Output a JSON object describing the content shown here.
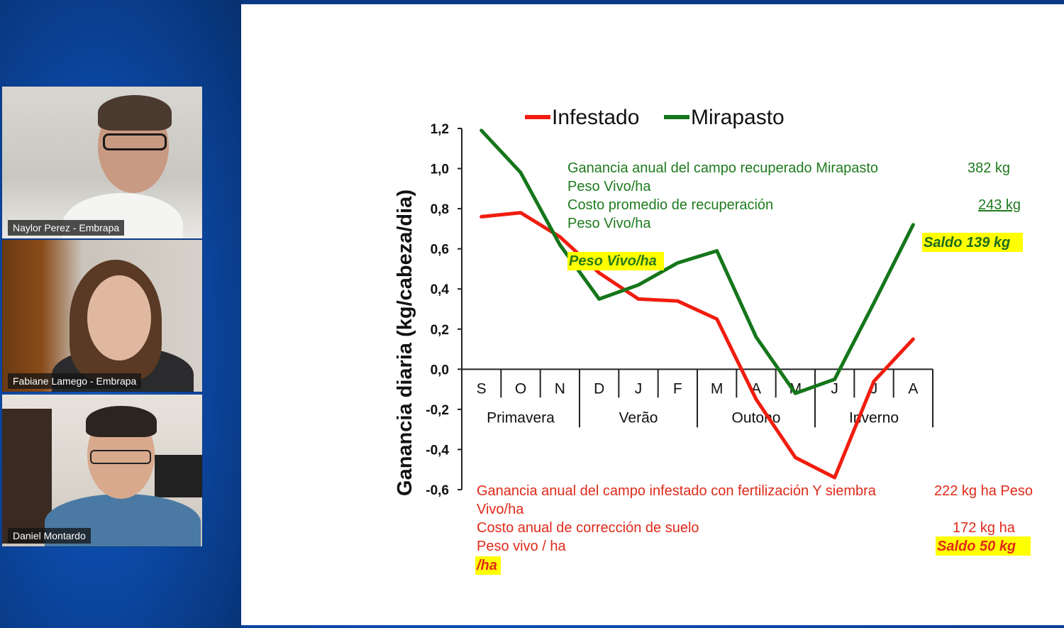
{
  "participants": [
    {
      "name": "Naylor Perez - Embrapa"
    },
    {
      "name": "Fabiane Lamego - Embrapa"
    },
    {
      "name": "Daniel Montardo"
    }
  ],
  "colors": {
    "infestado": "#f01d0f",
    "mirapasto": "#15761a",
    "highlight": "#ffff00"
  },
  "chart_data": {
    "type": "line",
    "ylabel": "Ganancia diaria (kg/cabeza/dia)",
    "ylim": [
      -0.6,
      1.2
    ],
    "yticks": [
      "1,2",
      "1,0",
      "0,8",
      "0,6",
      "0,4",
      "0,2",
      "0,0",
      "-0,2",
      "-0,4",
      "-0,6"
    ],
    "categories": [
      "S",
      "O",
      "N",
      "D",
      "J",
      "F",
      "M",
      "A",
      "M",
      "J",
      "J",
      "A"
    ],
    "seasons": [
      "Primavera",
      "Verão",
      "Outono",
      "Inverno"
    ],
    "series": [
      {
        "name": "Infestado",
        "values": [
          0.76,
          0.78,
          0.66,
          0.48,
          0.35,
          0.34,
          0.25,
          -0.15,
          -0.44,
          -0.54,
          -0.06,
          0.15
        ]
      },
      {
        "name": "Mirapasto",
        "values": [
          1.19,
          0.98,
          0.62,
          0.35,
          0.42,
          0.53,
          0.59,
          0.16,
          -0.12,
          -0.05,
          0.33,
          0.72
        ]
      }
    ],
    "legend": "top"
  },
  "notes": {
    "green_line1": "Ganancia anual del campo recuperado Mirapasto",
    "green_line1_value": "382 kg",
    "green_line2": "Peso Vivo/ha",
    "green_line3": "Costo promedio de recuperación",
    "green_line3_value": "243 kg",
    "green_line4": "Peso Vivo/ha",
    "green_highlight": "Peso Vivo/ha",
    "green_saldo": "Saldo 139 kg",
    "red_line1": "Ganancia anual del campo infestado con fertilización Y siembra",
    "red_line1_value": "222 kg ha Peso",
    "red_line2": "Vivo/ha",
    "red_line3": "Costo anual de corrección de suelo",
    "red_line3_value": "172 kg ha",
    "red_line4": "Peso vivo / ha",
    "red_saldo": "Saldo  50 kg",
    "red_ha": "/ha"
  }
}
